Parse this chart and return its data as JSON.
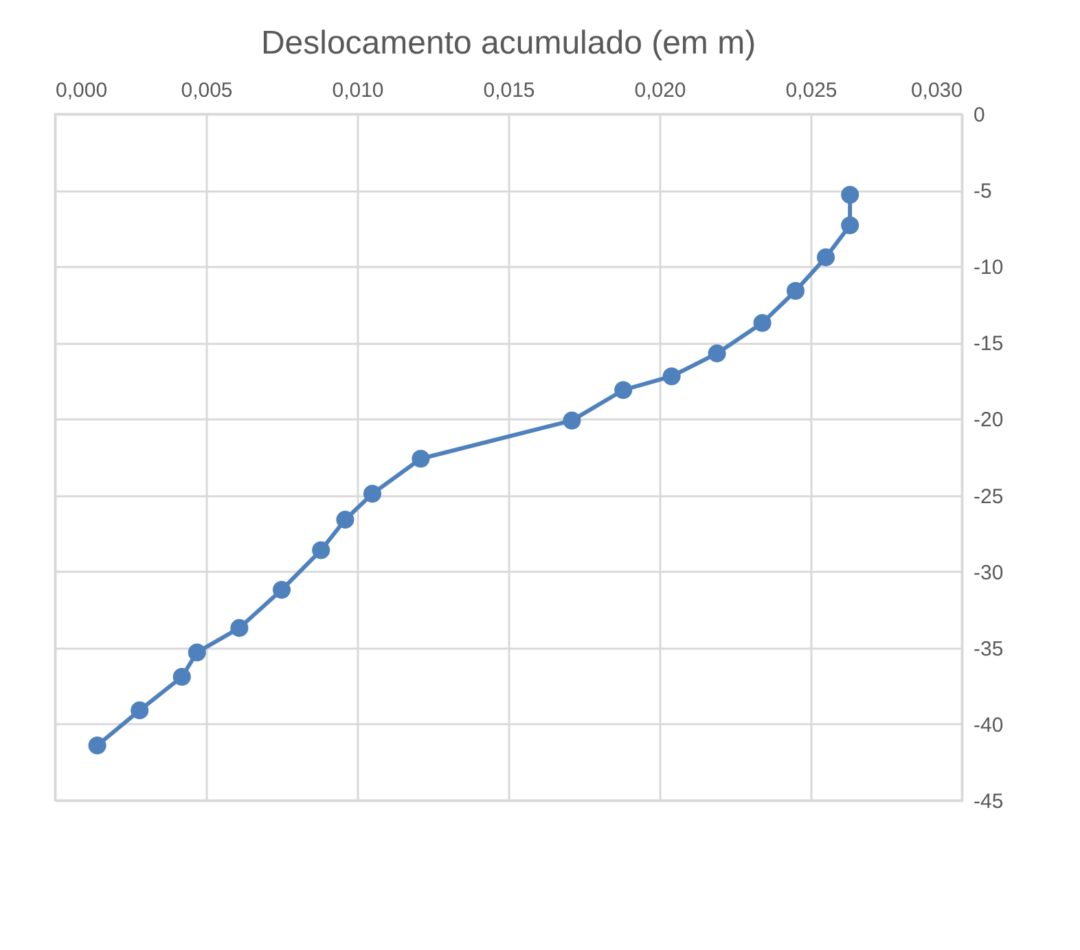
{
  "chart_data": {
    "type": "line",
    "title": "Deslocamento acumulado (em m)",
    "x": [
      0.0263,
      0.0263,
      0.0255,
      0.0245,
      0.0234,
      0.0219,
      0.0204,
      0.0188,
      0.0171,
      0.0121,
      0.0105,
      0.0096,
      0.0088,
      0.0075,
      0.0061,
      0.0047,
      0.0042,
      0.0028,
      0.0014
    ],
    "series": [
      {
        "color": "#4f81bd",
        "values": [
          -5.3,
          -7.3,
          -9.4,
          -11.6,
          -13.7,
          -15.7,
          -17.2,
          -18.1,
          -20.1,
          -22.6,
          -24.9,
          -26.6,
          -28.6,
          -31.2,
          -33.7,
          -35.3,
          -36.9,
          -39.1,
          -41.4
        ]
      }
    ],
    "xlim": [
      0,
      0.03
    ],
    "xticks": [
      {
        "value": 0,
        "label": "0,000"
      },
      {
        "value": 0.005,
        "label": "0,005"
      },
      {
        "value": 0.01,
        "label": "0,010"
      },
      {
        "value": 0.015,
        "label": "0,015"
      },
      {
        "value": 0.02,
        "label": "0,020"
      },
      {
        "value": 0.025,
        "label": "0,025"
      },
      {
        "value": 0.03,
        "label": "0,030"
      }
    ],
    "ylim": [
      -45,
      0
    ],
    "yticks": [
      0,
      -5,
      -10,
      -15,
      -20,
      -25,
      -30,
      -35,
      -40,
      -45
    ],
    "grid": true,
    "marker": "circle",
    "line_style": "solid"
  }
}
